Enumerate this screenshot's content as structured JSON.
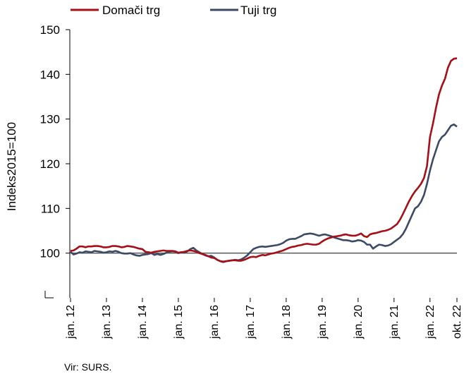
{
  "chart_data": {
    "type": "line",
    "ylabel": "Indeks2015=100",
    "xlabel": "",
    "ylim": [
      90,
      150
    ],
    "yticks": [
      100,
      110,
      120,
      130,
      140,
      150
    ],
    "x_start": "2012-01",
    "x_end": "2022-10",
    "xtick_labels": [
      "jan. 12",
      "jan. 13",
      "jan. 14",
      "jan. 15",
      "jan. 16",
      "jan. 17",
      "jan. 18",
      "jan. 19",
      "jan. 20",
      "jan. 21",
      "jan. 22",
      "okt. 22"
    ],
    "reference_line": 100,
    "grid": false,
    "legend_position": "top-left",
    "source": "Vir: SURS.",
    "colors": {
      "domaci": "#a50f15",
      "tuji": "#3d4a66",
      "reference": "#595959"
    },
    "series": [
      {
        "name": "Domači trg",
        "key": "domaci",
        "points": [
          [
            "2012-01",
            100.5
          ],
          [
            "2012-02",
            100.6
          ],
          [
            "2012-03",
            101.0
          ],
          [
            "2012-04",
            101.5
          ],
          [
            "2012-05",
            101.5
          ],
          [
            "2012-06",
            101.3
          ],
          [
            "2012-07",
            101.5
          ],
          [
            "2012-08",
            101.5
          ],
          [
            "2012-09",
            101.6
          ],
          [
            "2012-10",
            101.6
          ],
          [
            "2012-11",
            101.5
          ],
          [
            "2012-12",
            101.3
          ],
          [
            "2013-01",
            101.3
          ],
          [
            "2013-02",
            101.4
          ],
          [
            "2013-03",
            101.6
          ],
          [
            "2013-04",
            101.6
          ],
          [
            "2013-05",
            101.5
          ],
          [
            "2013-06",
            101.3
          ],
          [
            "2013-07",
            101.4
          ],
          [
            "2013-08",
            101.6
          ],
          [
            "2013-09",
            101.5
          ],
          [
            "2013-10",
            101.4
          ],
          [
            "2013-11",
            101.2
          ],
          [
            "2013-12",
            101.0
          ],
          [
            "2014-01",
            100.9
          ],
          [
            "2014-02",
            100.3
          ],
          [
            "2014-03",
            100.2
          ],
          [
            "2014-04",
            100.1
          ],
          [
            "2014-05",
            100.3
          ],
          [
            "2014-06",
            100.4
          ],
          [
            "2014-07",
            100.5
          ],
          [
            "2014-08",
            100.6
          ],
          [
            "2014-09",
            100.5
          ],
          [
            "2014-10",
            100.5
          ],
          [
            "2014-11",
            100.5
          ],
          [
            "2014-12",
            100.4
          ],
          [
            "2015-01",
            100.1
          ],
          [
            "2015-02",
            100.2
          ],
          [
            "2015-03",
            100.3
          ],
          [
            "2015-04",
            100.5
          ],
          [
            "2015-05",
            100.6
          ],
          [
            "2015-06",
            100.5
          ],
          [
            "2015-07",
            100.3
          ],
          [
            "2015-08",
            100.0
          ],
          [
            "2015-09",
            99.8
          ],
          [
            "2015-10",
            99.6
          ],
          [
            "2015-11",
            99.3
          ],
          [
            "2015-12",
            99.0
          ],
          [
            "2016-01",
            98.9
          ],
          [
            "2016-02",
            98.5
          ],
          [
            "2016-03",
            98.2
          ],
          [
            "2016-04",
            98.1
          ],
          [
            "2016-05",
            98.2
          ],
          [
            "2016-06",
            98.3
          ],
          [
            "2016-07",
            98.4
          ],
          [
            "2016-08",
            98.4
          ],
          [
            "2016-09",
            98.3
          ],
          [
            "2016-10",
            98.3
          ],
          [
            "2016-11",
            98.5
          ],
          [
            "2016-12",
            98.8
          ],
          [
            "2017-01",
            99.1
          ],
          [
            "2017-02",
            99.2
          ],
          [
            "2017-03",
            99.1
          ],
          [
            "2017-04",
            99.4
          ],
          [
            "2017-05",
            99.6
          ],
          [
            "2017-06",
            99.5
          ],
          [
            "2017-07",
            99.7
          ],
          [
            "2017-08",
            99.9
          ],
          [
            "2017-09",
            100.0
          ],
          [
            "2017-10",
            100.2
          ],
          [
            "2017-11",
            100.4
          ],
          [
            "2017-12",
            100.6
          ],
          [
            "2018-01",
            100.9
          ],
          [
            "2018-02",
            101.2
          ],
          [
            "2018-03",
            101.4
          ],
          [
            "2018-04",
            101.5
          ],
          [
            "2018-05",
            101.7
          ],
          [
            "2018-06",
            101.8
          ],
          [
            "2018-07",
            102.0
          ],
          [
            "2018-08",
            102.1
          ],
          [
            "2018-09",
            102.0
          ],
          [
            "2018-10",
            101.9
          ],
          [
            "2018-11",
            101.9
          ],
          [
            "2018-12",
            102.1
          ],
          [
            "2019-01",
            102.6
          ],
          [
            "2019-02",
            103.0
          ],
          [
            "2019-03",
            103.3
          ],
          [
            "2019-04",
            103.5
          ],
          [
            "2019-05",
            103.7
          ],
          [
            "2019-06",
            103.8
          ],
          [
            "2019-07",
            103.9
          ],
          [
            "2019-08",
            104.1
          ],
          [
            "2019-09",
            104.2
          ],
          [
            "2019-10",
            104.0
          ],
          [
            "2019-11",
            103.9
          ],
          [
            "2019-12",
            103.9
          ],
          [
            "2020-01",
            104.1
          ],
          [
            "2020-02",
            104.4
          ],
          [
            "2020-03",
            103.8
          ],
          [
            "2020-04",
            103.6
          ],
          [
            "2020-05",
            104.2
          ],
          [
            "2020-06",
            104.4
          ],
          [
            "2020-07",
            104.5
          ],
          [
            "2020-08",
            104.7
          ],
          [
            "2020-09",
            104.9
          ],
          [
            "2020-10",
            105.0
          ],
          [
            "2020-11",
            105.2
          ],
          [
            "2020-12",
            105.5
          ],
          [
            "2021-01",
            106.0
          ],
          [
            "2021-02",
            106.5
          ],
          [
            "2021-03",
            107.5
          ],
          [
            "2021-04",
            108.8
          ],
          [
            "2021-05",
            110.2
          ],
          [
            "2021-06",
            111.6
          ],
          [
            "2021-07",
            112.8
          ],
          [
            "2021-08",
            113.8
          ],
          [
            "2021-09",
            114.6
          ],
          [
            "2021-10",
            115.5
          ],
          [
            "2021-11",
            116.8
          ],
          [
            "2021-12",
            119.5
          ],
          [
            "2022-01",
            126.0
          ],
          [
            "2022-02",
            129.0
          ],
          [
            "2022-03",
            132.5
          ],
          [
            "2022-04",
            135.5
          ],
          [
            "2022-05",
            137.5
          ],
          [
            "2022-06",
            139.0
          ],
          [
            "2022-07",
            141.5
          ],
          [
            "2022-08",
            143.0
          ],
          [
            "2022-09",
            143.5
          ],
          [
            "2022-10",
            143.6
          ]
        ]
      },
      {
        "name": "Tuji trg",
        "key": "tuji",
        "points": [
          [
            "2012-01",
            100.3
          ],
          [
            "2012-02",
            99.7
          ],
          [
            "2012-03",
            99.9
          ],
          [
            "2012-04",
            100.2
          ],
          [
            "2012-05",
            100.1
          ],
          [
            "2012-06",
            100.4
          ],
          [
            "2012-07",
            100.3
          ],
          [
            "2012-08",
            100.2
          ],
          [
            "2012-09",
            100.5
          ],
          [
            "2012-10",
            100.4
          ],
          [
            "2012-11",
            100.3
          ],
          [
            "2012-12",
            100.1
          ],
          [
            "2013-01",
            100.2
          ],
          [
            "2013-02",
            100.4
          ],
          [
            "2013-03",
            100.3
          ],
          [
            "2013-04",
            100.5
          ],
          [
            "2013-05",
            100.3
          ],
          [
            "2013-06",
            100.0
          ],
          [
            "2013-07",
            99.9
          ],
          [
            "2013-08",
            99.9
          ],
          [
            "2013-09",
            100.0
          ],
          [
            "2013-10",
            99.7
          ],
          [
            "2013-11",
            99.5
          ],
          [
            "2013-12",
            99.4
          ],
          [
            "2014-01",
            99.6
          ],
          [
            "2014-02",
            99.7
          ],
          [
            "2014-03",
            99.8
          ],
          [
            "2014-04",
            100.0
          ],
          [
            "2014-05",
            99.6
          ],
          [
            "2014-06",
            99.8
          ],
          [
            "2014-07",
            99.6
          ],
          [
            "2014-08",
            99.8
          ],
          [
            "2014-09",
            100.1
          ],
          [
            "2014-10",
            100.3
          ],
          [
            "2014-11",
            100.4
          ],
          [
            "2014-12",
            100.3
          ],
          [
            "2015-01",
            100.0
          ],
          [
            "2015-02",
            100.2
          ],
          [
            "2015-03",
            100.1
          ],
          [
            "2015-04",
            100.4
          ],
          [
            "2015-05",
            100.9
          ],
          [
            "2015-06",
            101.2
          ],
          [
            "2015-07",
            100.6
          ],
          [
            "2015-08",
            100.2
          ],
          [
            "2015-09",
            99.8
          ],
          [
            "2015-10",
            99.5
          ],
          [
            "2015-11",
            99.3
          ],
          [
            "2015-12",
            99.4
          ],
          [
            "2016-01",
            99.0
          ],
          [
            "2016-02",
            98.5
          ],
          [
            "2016-03",
            98.2
          ],
          [
            "2016-04",
            98.0
          ],
          [
            "2016-05",
            98.2
          ],
          [
            "2016-06",
            98.3
          ],
          [
            "2016-07",
            98.4
          ],
          [
            "2016-08",
            98.5
          ],
          [
            "2016-09",
            98.4
          ],
          [
            "2016-10",
            98.6
          ],
          [
            "2016-11",
            99.0
          ],
          [
            "2016-12",
            99.5
          ],
          [
            "2017-01",
            100.2
          ],
          [
            "2017-02",
            100.9
          ],
          [
            "2017-03",
            101.2
          ],
          [
            "2017-04",
            101.4
          ],
          [
            "2017-05",
            101.5
          ],
          [
            "2017-06",
            101.4
          ],
          [
            "2017-07",
            101.5
          ],
          [
            "2017-08",
            101.6
          ],
          [
            "2017-09",
            101.7
          ],
          [
            "2017-10",
            101.8
          ],
          [
            "2017-11",
            102.0
          ],
          [
            "2017-12",
            102.3
          ],
          [
            "2018-01",
            102.8
          ],
          [
            "2018-02",
            103.1
          ],
          [
            "2018-03",
            103.2
          ],
          [
            "2018-04",
            103.2
          ],
          [
            "2018-05",
            103.5
          ],
          [
            "2018-06",
            103.8
          ],
          [
            "2018-07",
            104.2
          ],
          [
            "2018-08",
            104.3
          ],
          [
            "2018-09",
            104.4
          ],
          [
            "2018-10",
            104.3
          ],
          [
            "2018-11",
            104.1
          ],
          [
            "2018-12",
            103.9
          ],
          [
            "2019-01",
            104.1
          ],
          [
            "2019-02",
            104.2
          ],
          [
            "2019-03",
            104.0
          ],
          [
            "2019-04",
            103.8
          ],
          [
            "2019-05",
            103.5
          ],
          [
            "2019-06",
            103.3
          ],
          [
            "2019-07",
            103.1
          ],
          [
            "2019-08",
            102.9
          ],
          [
            "2019-09",
            102.9
          ],
          [
            "2019-10",
            102.8
          ],
          [
            "2019-11",
            102.6
          ],
          [
            "2019-12",
            102.7
          ],
          [
            "2020-01",
            102.9
          ],
          [
            "2020-02",
            102.8
          ],
          [
            "2020-03",
            102.5
          ],
          [
            "2020-04",
            101.9
          ],
          [
            "2020-05",
            101.9
          ],
          [
            "2020-06",
            101.0
          ],
          [
            "2020-07",
            101.5
          ],
          [
            "2020-08",
            101.9
          ],
          [
            "2020-09",
            101.8
          ],
          [
            "2020-10",
            101.6
          ],
          [
            "2020-11",
            101.7
          ],
          [
            "2020-12",
            102.0
          ],
          [
            "2021-01",
            102.5
          ],
          [
            "2021-02",
            103.0
          ],
          [
            "2021-03",
            103.5
          ],
          [
            "2021-04",
            104.3
          ],
          [
            "2021-05",
            105.5
          ],
          [
            "2021-06",
            107.0
          ],
          [
            "2021-07",
            108.5
          ],
          [
            "2021-08",
            110.0
          ],
          [
            "2021-09",
            110.5
          ],
          [
            "2021-10",
            111.5
          ],
          [
            "2021-11",
            113.0
          ],
          [
            "2021-12",
            115.5
          ],
          [
            "2022-01",
            118.5
          ],
          [
            "2022-02",
            121.0
          ],
          [
            "2022-03",
            123.0
          ],
          [
            "2022-04",
            125.0
          ],
          [
            "2022-05",
            126.0
          ],
          [
            "2022-06",
            126.5
          ],
          [
            "2022-07",
            127.5
          ],
          [
            "2022-08",
            128.5
          ],
          [
            "2022-09",
            128.8
          ],
          [
            "2022-10",
            128.3
          ]
        ]
      }
    ]
  }
}
